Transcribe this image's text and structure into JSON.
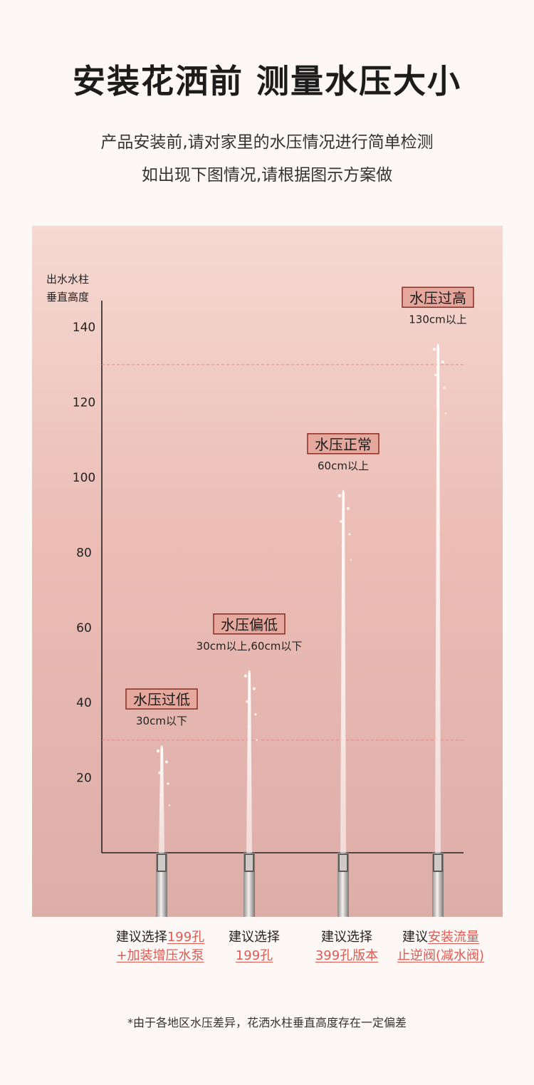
{
  "header": {
    "title": "安装花洒前  测量水压大小",
    "subtitle_line1": "产品安装前,请对家里的水压情况进行简单检测",
    "subtitle_line2": "如出现下图情况,请根据图示方案做"
  },
  "chart_data": {
    "type": "bar",
    "ylabel": "出水水柱\n垂直高度",
    "y_ticks": [
      20,
      40,
      60,
      80,
      100,
      120,
      140
    ],
    "ylim": [
      0,
      150
    ],
    "reference_lines": [
      30,
      130
    ],
    "categories": [
      "水压过低",
      "水压偏低",
      "水压正常",
      "水压过高"
    ],
    "ranges": [
      "30cm以下",
      "30cm以上,60cm以下",
      "60cm以上",
      "130cm以上"
    ],
    "values": [
      29,
      49,
      97,
      136
    ],
    "colors": {
      "label_fill": "#e6a79d",
      "label_stroke": "#8a2c24",
      "dashed_line": "#e58a86",
      "axis": "#222222",
      "water": "#ffffff"
    }
  },
  "recommendations": [
    {
      "prefix": "建议选择",
      "highlight1": "199孔",
      "line2": "+加装增压水泵"
    },
    {
      "prefix": "建议选择",
      "highlight1": "",
      "line2": "199孔"
    },
    {
      "prefix": "建议选择",
      "highlight1": "",
      "line2": "399孔版本"
    },
    {
      "prefix": "建议",
      "highlight1": "安装流量",
      "line2": "止逆阀(减水阀)"
    }
  ],
  "footnote": "*由于各地区水压差异，花洒水柱垂直高度存在一定偏差"
}
